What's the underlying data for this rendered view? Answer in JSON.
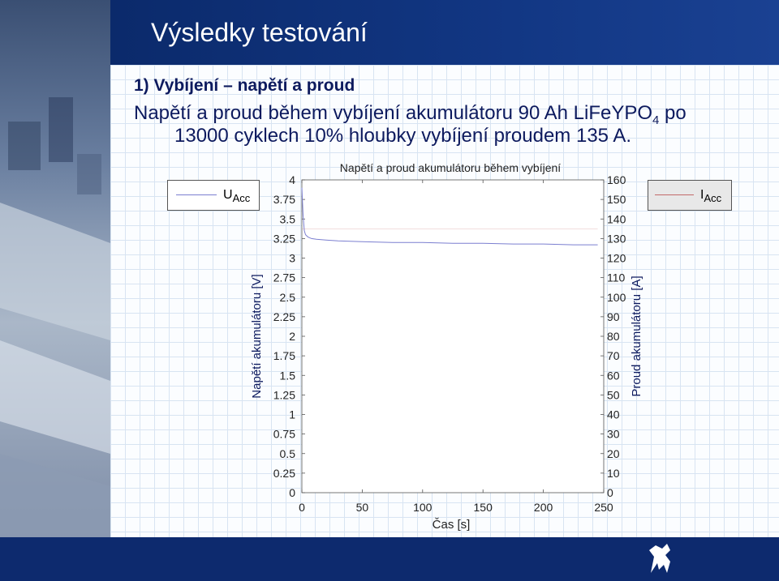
{
  "slide": {
    "title": "Výsledky testování",
    "heading": "1) Vybíjení – napětí a proud",
    "desc_line1_before": "Napětí a proud během vybíjení akumulátoru 90 Ah LiFeYPO",
    "desc_line1_sub": "4",
    "desc_line1_after": " po",
    "desc_line2": "13000 cyklech 10% hloubky vybíjení proudem 135 A."
  },
  "legend_left": {
    "main": "U",
    "sub": "Acc"
  },
  "legend_right": {
    "main": "I",
    "sub": "Acc"
  },
  "colors": {
    "voltage": "#7b7fd0",
    "current": "#c26a6a",
    "title_band": "#0b2a6b",
    "text": "#0d1a5e"
  },
  "chart_data": {
    "type": "line",
    "title": "Napětí a proud akumulátoru během vybíjení",
    "xlabel": "Čas [s]",
    "ylabel": "Napětí akumulátoru [V]",
    "y2label": "Proud akumulátoru [A]",
    "xlim": [
      0,
      250
    ],
    "ylim": [
      0,
      4
    ],
    "y2lim": [
      0,
      160
    ],
    "x_ticks": [
      "0",
      "50",
      "100",
      "150",
      "200",
      "250"
    ],
    "y_ticks": [
      "4",
      "3.75",
      "3.5",
      "3.25",
      "3",
      "2.75",
      "2.5",
      "2.25",
      "2",
      "1.75",
      "1.5",
      "1.25",
      "1",
      "0.75",
      "0.5",
      "0.25",
      "0"
    ],
    "y2_ticks": [
      "160",
      "150",
      "140",
      "130",
      "120",
      "110",
      "100",
      "90",
      "80",
      "70",
      "60",
      "50",
      "40",
      "30",
      "20",
      "10",
      "0"
    ],
    "series": [
      {
        "name": "U Acc",
        "axis": "left",
        "x": [
          0,
          1,
          2,
          3,
          5,
          8,
          12,
          20,
          30,
          50,
          75,
          100,
          125,
          150,
          175,
          200,
          225,
          245
        ],
        "y": [
          3.9,
          3.55,
          3.35,
          3.3,
          3.27,
          3.25,
          3.24,
          3.23,
          3.22,
          3.21,
          3.2,
          3.2,
          3.19,
          3.19,
          3.18,
          3.18,
          3.17,
          3.17
        ]
      },
      {
        "name": "I Acc",
        "axis": "right",
        "x": [
          0,
          245
        ],
        "y": [
          135,
          135
        ]
      }
    ]
  }
}
